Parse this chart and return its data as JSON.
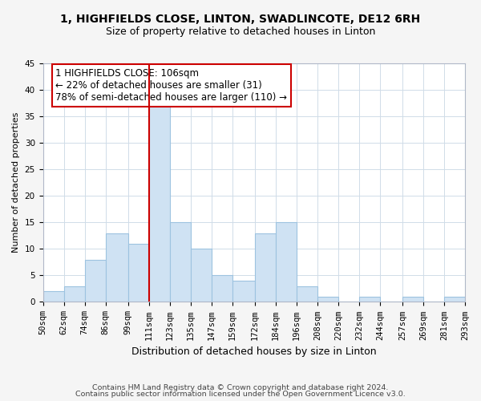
{
  "title": "1, HIGHFIELDS CLOSE, LINTON, SWADLINCOTE, DE12 6RH",
  "subtitle": "Size of property relative to detached houses in Linton",
  "xlabel": "Distribution of detached houses by size in Linton",
  "ylabel": "Number of detached properties",
  "bar_color": "#cfe2f3",
  "bar_edge_color": "#9dc3e0",
  "bin_edges": [
    50,
    62,
    74,
    86,
    99,
    111,
    123,
    135,
    147,
    159,
    172,
    184,
    196,
    208,
    220,
    232,
    244,
    257,
    269,
    281,
    293
  ],
  "bin_labels": [
    "50sqm",
    "62sqm",
    "74sqm",
    "86sqm",
    "99sqm",
    "111sqm",
    "123sqm",
    "135sqm",
    "147sqm",
    "159sqm",
    "172sqm",
    "184sqm",
    "196sqm",
    "208sqm",
    "220sqm",
    "232sqm",
    "244sqm",
    "257sqm",
    "269sqm",
    "281sqm",
    "293sqm"
  ],
  "counts": [
    2,
    3,
    8,
    13,
    11,
    37,
    15,
    10,
    5,
    4,
    13,
    15,
    3,
    1,
    0,
    1,
    0,
    1,
    0,
    1
  ],
  "ylim": [
    0,
    45
  ],
  "yticks": [
    0,
    5,
    10,
    15,
    20,
    25,
    30,
    35,
    40,
    45
  ],
  "annotation_line1": "1 HIGHFIELDS CLOSE: 106sqm",
  "annotation_line2": "← 22% of detached houses are smaller (31)",
  "annotation_line3": "78% of semi-detached houses are larger (110) →",
  "annotation_box_color": "#ffffff",
  "annotation_box_edge": "#cc0000",
  "vline_color": "#cc0000",
  "footer_line1": "Contains HM Land Registry data © Crown copyright and database right 2024.",
  "footer_line2": "Contains public sector information licensed under the Open Government Licence v3.0.",
  "background_color": "#f5f5f5",
  "plot_background_color": "#ffffff",
  "grid_color": "#d0dce8",
  "title_fontsize": 10,
  "subtitle_fontsize": 9,
  "ylabel_fontsize": 8,
  "xlabel_fontsize": 9,
  "tick_fontsize": 7.5,
  "annotation_fontsize": 8.5,
  "footer_fontsize": 6.8
}
